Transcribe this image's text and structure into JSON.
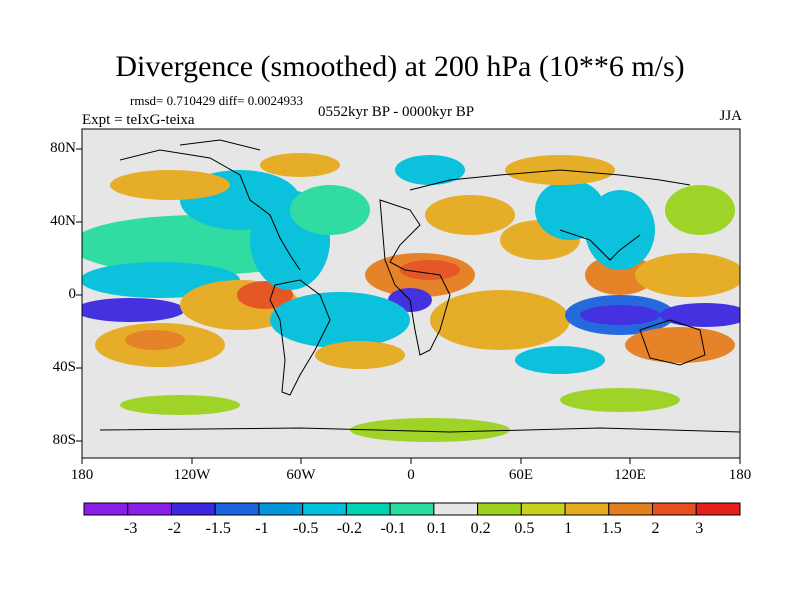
{
  "title": "Divergence (smoothed) at 200 hPa (10**6 m/s)",
  "stats": "rmsd= 0.710429 diff= 0.0024933",
  "experiment": "Expt = teIxG-teixa",
  "period": "0552kyr BP - 0000kyr BP",
  "season": "JJA",
  "lat_labels": [
    "80N",
    "40N",
    "0",
    "40S",
    "80S"
  ],
  "lon_labels": [
    "180",
    "120W",
    "60W",
    "0",
    "60E",
    "120E",
    "180"
  ],
  "colorbar": {
    "labels": [
      "-3",
      "-2",
      "-1.5",
      "-1",
      "-0.5",
      "-0.2",
      "-0.1",
      "0.1",
      "0.2",
      "0.5",
      "1",
      "1.5",
      "2",
      "3"
    ],
    "colors": [
      "#8a1ee6",
      "#3c28e0",
      "#1a64dc",
      "#0096dc",
      "#00c0dc",
      "#00d2b4",
      "#28dca0",
      "#e6e6e6",
      "#9bd21e",
      "#c8d21e",
      "#e6aa1e",
      "#e67e1e",
      "#e6501e",
      "#e61e1e"
    ]
  }
}
